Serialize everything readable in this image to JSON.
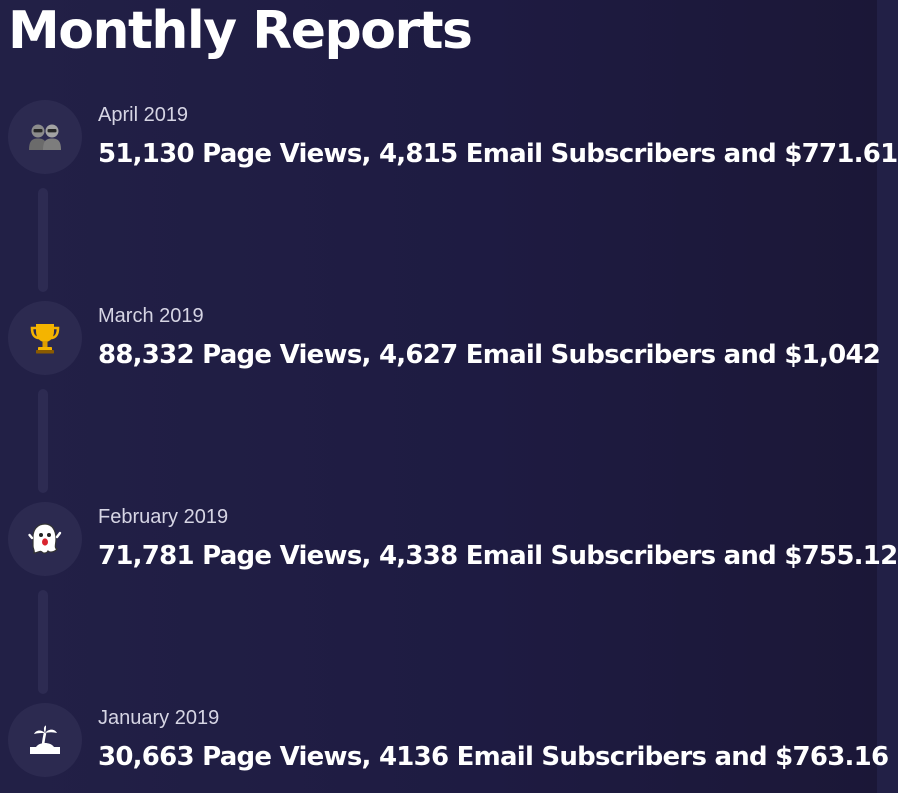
{
  "page": {
    "title": "Monthly Reports"
  },
  "reports": [
    {
      "month": "April 2019",
      "summary": "51,130 Page Views, 4,815 Email Subscribers and $771.61",
      "icon": "two-people-icon"
    },
    {
      "month": "March 2019",
      "summary": "88,332 Page Views, 4,627 Email Subscribers and $1,042",
      "icon": "trophy-icon"
    },
    {
      "month": "February 2019",
      "summary": "71,781 Page Views, 4,338 Email Subscribers and $755.12",
      "icon": "ghost-icon"
    },
    {
      "month": "January 2019",
      "summary": "30,663 Page Views, 4136 Email Subscribers and $763.16",
      "icon": "desert-island-icon"
    }
  ],
  "colors": {
    "background": "#1f1c43",
    "icon_circle": "#2c2a50",
    "connector": "#2d2b52",
    "date_text": "#d6d5e4",
    "summary_text": "#ffffff"
  }
}
